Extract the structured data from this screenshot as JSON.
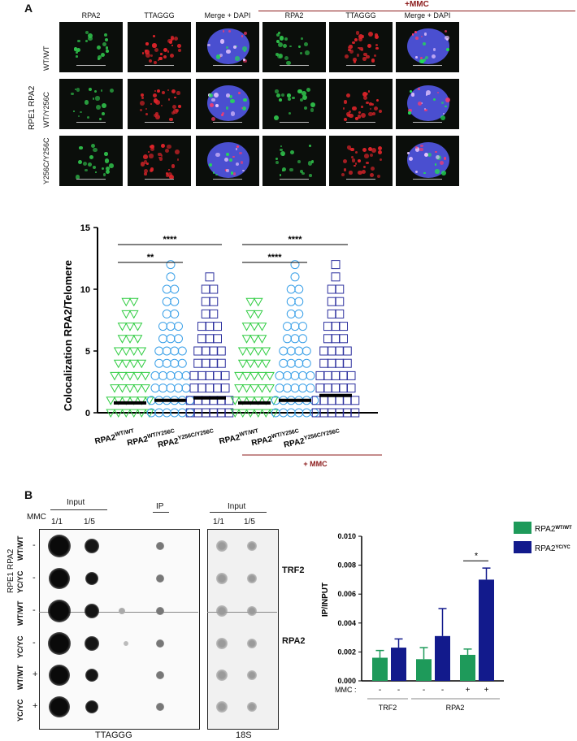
{
  "panel_a": {
    "letter": "A",
    "columns": [
      "RPA2",
      "TTAGGG",
      "Merge + DAPI",
      "RPA2",
      "TTAGGG",
      "Merge + DAPI"
    ],
    "mmc_label": "+MMC",
    "side_label": "RPE1 RPA2",
    "rows": [
      "WT/WT",
      "WT/Y256C",
      "Y256C/Y256C"
    ]
  },
  "panel_b": {
    "letter": "B",
    "input_label": "Input",
    "ip_label": "IP",
    "mmc_label": "MMC",
    "dilutions": [
      "1/1",
      "1/5"
    ],
    "input2_label": "Input",
    "dilutions2": [
      "1/1",
      "1/5"
    ],
    "side_label": "RPE1 RPA2",
    "row_genotypes": [
      "WT/WT",
      "YC/YC",
      "WT/WT",
      "YC/YC",
      "WT/WT",
      "YC/YC"
    ],
    "row_mmc": [
      "-",
      "-",
      "-",
      "-",
      "+",
      "+"
    ],
    "probe_left": "TTAGGG",
    "probe_right": "18S",
    "ab_labels": [
      "TRF2",
      "RPA2"
    ]
  },
  "colors": {
    "wt": "#2ecc40",
    "wtyc": "#3aa0e8",
    "ycyc": "#2b2f9e",
    "mmc_red": "#8b1a1a",
    "bar_green": "#1e9a5a",
    "bar_navy": "#121a8c"
  },
  "chart_data": [
    {
      "type": "scatter",
      "ylabel": "Colocalization RPA2/Telomere",
      "ylim": [
        0,
        15
      ],
      "yticks": [
        0,
        5,
        10,
        15
      ],
      "groups": [
        {
          "label": "RPA2",
          "sup": "WT/WT",
          "marker": "triangle",
          "median": 0.8,
          "max": 9
        },
        {
          "label": "RPA2",
          "sup": "WT/Y256C",
          "marker": "circle",
          "median": 1.0,
          "max": 12
        },
        {
          "label": "RPA2",
          "sup": "Y256C/Y256C",
          "marker": "square",
          "median": 1.2,
          "max": 11
        },
        {
          "label": "RPA2",
          "sup": "WT/WT",
          "marker": "triangle",
          "median": 0.8,
          "max": 9
        },
        {
          "label": "RPA2",
          "sup": "WT/Y256C",
          "marker": "circle",
          "median": 1.0,
          "max": 12
        },
        {
          "label": "RPA2",
          "sup": "Y256C/Y256C",
          "marker": "square",
          "median": 1.4,
          "max": 12
        }
      ],
      "significance": [
        {
          "from": 0,
          "to": 1,
          "label": "**"
        },
        {
          "from": 0,
          "to": 2,
          "label": "****"
        },
        {
          "from": 3,
          "to": 4,
          "label": "****"
        },
        {
          "from": 3,
          "to": 5,
          "label": "****"
        }
      ],
      "mmc_label": "+ MMC"
    },
    {
      "type": "bar",
      "ylabel": "IP/INPUT",
      "ylim": [
        0,
        0.01
      ],
      "yticks": [
        "0.000",
        "0.002",
        "0.004",
        "0.006",
        "0.008",
        "0.010"
      ],
      "mmc_row_label": "MMC :",
      "categories": [
        "TRF2",
        "RPA2",
        "RPA2"
      ],
      "mmc": [
        "-",
        "-",
        "-",
        "-",
        "+",
        "+"
      ],
      "series": [
        {
          "name": "RPA2",
          "sup": "WT/WT",
          "values": [
            0.0016,
            0.0015,
            0.0018
          ],
          "errors": [
            0.0005,
            0.0008,
            0.0004
          ]
        },
        {
          "name": "RPA2",
          "sup": "YC/YC",
          "values": [
            0.0023,
            0.0031,
            0.007
          ],
          "errors": [
            0.0006,
            0.0019,
            0.0008
          ]
        }
      ],
      "significance": [
        {
          "label": "*"
        }
      ],
      "legend": "top-right"
    }
  ]
}
